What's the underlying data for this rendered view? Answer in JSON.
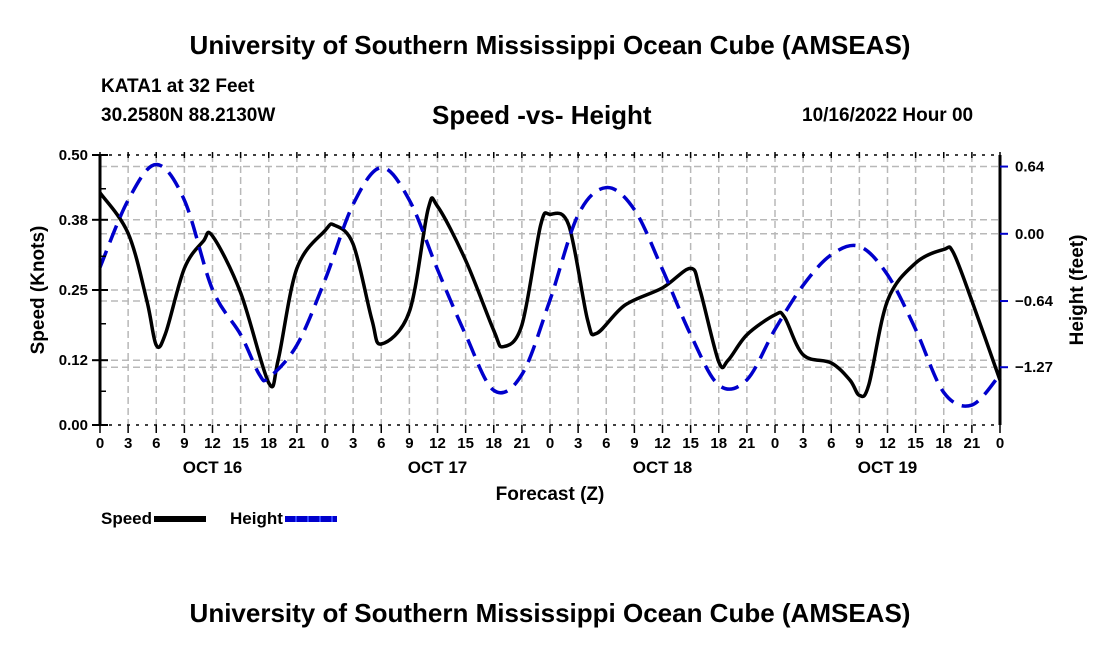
{
  "header": {
    "main_title": "University of Southern Mississippi Ocean Cube (AMSEAS)",
    "station": "KATA1 at 32 Feet",
    "coords": "30.2580N  88.2130W",
    "subtitle": "Speed -vs- Height",
    "datetime": "10/16/2022 Hour 00"
  },
  "footer": {
    "title": "University of Southern Mississippi Ocean Cube (AMSEAS)"
  },
  "legend": {
    "items": [
      {
        "label": "Speed",
        "color": "#000000",
        "style": "solid"
      },
      {
        "label": "Height",
        "color": "#0000cc",
        "style": "dashed"
      }
    ]
  },
  "chart_data": {
    "type": "line",
    "title": "Speed -vs- Height",
    "xlabel": "Forecast (Z)",
    "ylabel": "Speed (Knots)",
    "y2label": "Height (feet)",
    "x_unit": "forecast hours from 10/16/2022 00Z",
    "xlim": [
      0,
      96
    ],
    "x_tick_step_hours": 3,
    "x_tick_labels": [
      "0",
      "3",
      "6",
      "9",
      "12",
      "15",
      "18",
      "21",
      "0",
      "3",
      "6",
      "9",
      "12",
      "15",
      "18",
      "21",
      "0",
      "3",
      "6",
      "9",
      "12",
      "15",
      "18",
      "21",
      "0",
      "3",
      "6",
      "9",
      "12",
      "15",
      "18",
      "21",
      "0"
    ],
    "day_labels": [
      {
        "label": "OCT 16",
        "hour": 12
      },
      {
        "label": "OCT 17",
        "hour": 36
      },
      {
        "label": "OCT 18",
        "hour": 60
      },
      {
        "label": "OCT 19",
        "hour": 84
      }
    ],
    "ylim": [
      0,
      0.5
    ],
    "y_ticks": [
      0.0,
      0.12,
      0.25,
      0.38,
      0.5
    ],
    "y_tick_labels": [
      "0.00",
      "0.12",
      "0.25",
      "0.38",
      "0.50"
    ],
    "y2lim": [
      -1.82,
      0.75
    ],
    "y2_ticks": [
      0.64,
      0.0,
      -0.64,
      -1.27
    ],
    "y2_tick_labels": [
      "0.64",
      "0.00",
      "−0.64",
      "−1.27"
    ],
    "grid": true,
    "legend_position": "bottom-left",
    "series": [
      {
        "name": "Speed",
        "axis": "left",
        "color": "#000000",
        "style": "solid",
        "x": [
          0,
          3,
          5,
          6,
          7,
          9,
          11,
          12,
          15,
          18,
          19,
          21,
          24,
          25,
          27,
          29,
          30,
          33,
          35,
          36,
          39,
          42,
          43,
          45,
          47,
          48,
          50,
          52,
          53,
          56,
          60,
          63,
          64,
          66,
          67,
          69,
          72,
          73,
          75,
          78,
          80,
          81,
          82,
          84,
          87,
          90,
          91,
          93,
          96
        ],
        "values": [
          0.43,
          0.355,
          0.23,
          0.148,
          0.17,
          0.29,
          0.34,
          0.35,
          0.245,
          0.078,
          0.12,
          0.29,
          0.36,
          0.37,
          0.335,
          0.195,
          0.15,
          0.21,
          0.4,
          0.405,
          0.305,
          0.175,
          0.145,
          0.185,
          0.37,
          0.39,
          0.37,
          0.195,
          0.17,
          0.222,
          0.254,
          0.29,
          0.25,
          0.117,
          0.12,
          0.167,
          0.204,
          0.2,
          0.13,
          0.115,
          0.083,
          0.055,
          0.074,
          0.23,
          0.3,
          0.325,
          0.32,
          0.23,
          0.083
        ]
      },
      {
        "name": "Height",
        "axis": "right",
        "color": "#0000cc",
        "style": "dashed",
        "x": [
          0,
          3,
          6,
          9,
          12,
          15,
          17,
          18,
          21,
          24,
          27,
          30,
          33,
          36,
          39,
          42,
          45,
          48,
          51,
          54,
          57,
          60,
          63,
          66,
          69,
          72,
          75,
          78,
          81,
          84,
          87,
          90,
          93,
          96
        ],
        "values": [
          -0.32,
          0.32,
          0.66,
          0.32,
          -0.53,
          -0.96,
          -1.34,
          -1.37,
          -1.06,
          -0.44,
          0.28,
          0.63,
          0.32,
          -0.34,
          -0.96,
          -1.49,
          -1.34,
          -0.63,
          0.18,
          0.44,
          0.23,
          -0.34,
          -0.96,
          -1.44,
          -1.39,
          -0.91,
          -0.49,
          -0.2,
          -0.12,
          -0.39,
          -0.91,
          -1.51,
          -1.63,
          -1.34
        ]
      }
    ]
  }
}
